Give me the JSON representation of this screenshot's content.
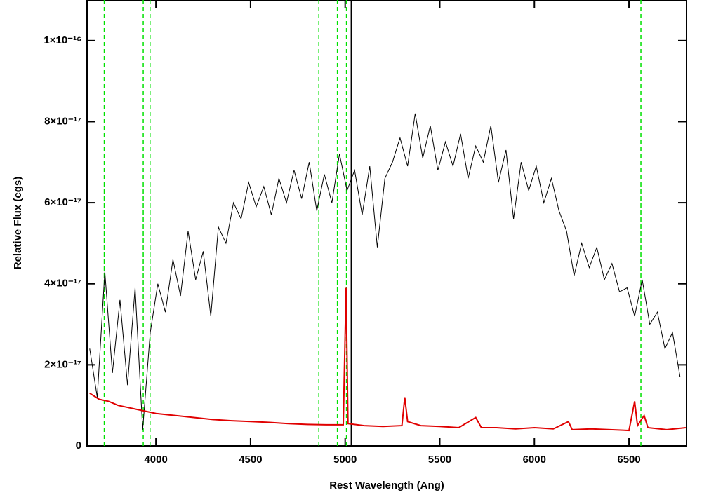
{
  "chart_data": {
    "type": "line",
    "xlabel": "Rest Wavelength (Ang)",
    "ylabel": "Relative Flux (cgs)",
    "xlim": [
      3636,
      6804
    ],
    "ylim": [
      0,
      1.1e-16
    ],
    "xticks": [
      4000,
      4500,
      5000,
      5500,
      6000,
      6500
    ],
    "yticks": [
      0,
      {
        "value": 2e-17,
        "label": "2×10⁻¹⁷"
      },
      {
        "value": 4e-17,
        "label": "4×10⁻¹⁷"
      },
      {
        "value": 6e-17,
        "label": "6×10⁻¹⁷"
      },
      {
        "value": 8e-17,
        "label": "8×10⁻¹⁷"
      },
      {
        "value": 1e-16,
        "label": "1×10⁻¹⁶"
      }
    ],
    "vlines": [
      {
        "value": 3727,
        "color": "#00e000",
        "dashed": true
      },
      {
        "value": 3933,
        "color": "#00e000",
        "dashed": true
      },
      {
        "value": 3969,
        "color": "#00e000",
        "dashed": true
      },
      {
        "value": 4861,
        "color": "#00e000",
        "dashed": true
      },
      {
        "value": 4959,
        "color": "#00e000",
        "dashed": true
      },
      {
        "value": 5007,
        "color": "#00e000",
        "dashed": true
      },
      {
        "value": 6563,
        "color": "#00e000",
        "dashed": true
      },
      {
        "value": 5032,
        "color": "#000000",
        "dashed": false
      }
    ],
    "series": [
      {
        "color": "#000000",
        "x": [
          3650,
          3690,
          3730,
          3770,
          3810,
          3850,
          3890,
          3930,
          3970,
          4010,
          4050,
          4090,
          4130,
          4170,
          4210,
          4250,
          4290,
          4330,
          4370,
          4410,
          4450,
          4490,
          4530,
          4570,
          4610,
          4650,
          4690,
          4730,
          4770,
          4810,
          4850,
          4890,
          4930,
          4970,
          5010,
          5050,
          5090,
          5130,
          5170,
          5210,
          5250,
          5290,
          5330,
          5370,
          5410,
          5450,
          5490,
          5530,
          5570,
          5610,
          5650,
          5690,
          5730,
          5770,
          5810,
          5850,
          5890,
          5930,
          5970,
          6010,
          6050,
          6090,
          6130,
          6170,
          6210,
          6250,
          6290,
          6330,
          6370,
          6410,
          6450,
          6490,
          6530,
          6570,
          6610,
          6650,
          6690,
          6730,
          6770
        ],
        "values": [
          2.4e-17,
          1.2e-17,
          4.3e-17,
          1.8e-17,
          3.6e-17,
          1.5e-17,
          3.9e-17,
          4e-18,
          2.8e-17,
          4e-17,
          3.3e-17,
          4.6e-17,
          3.7e-17,
          5.3e-17,
          4.1e-17,
          4.8e-17,
          3.2e-17,
          5.4e-17,
          5e-17,
          6e-17,
          5.6e-17,
          6.5e-17,
          5.9e-17,
          6.4e-17,
          5.7e-17,
          6.6e-17,
          6e-17,
          6.8e-17,
          6.1e-17,
          7e-17,
          5.8e-17,
          6.7e-17,
          6e-17,
          7.2e-17,
          6.3e-17,
          6.8e-17,
          5.7e-17,
          6.9e-17,
          4.9e-17,
          6.6e-17,
          7e-17,
          7.6e-17,
          6.9e-17,
          8.2e-17,
          7.1e-17,
          7.9e-17,
          6.8e-17,
          7.5e-17,
          6.9e-17,
          7.7e-17,
          6.6e-17,
          7.4e-17,
          7e-17,
          7.9e-17,
          6.5e-17,
          7.3e-17,
          5.6e-17,
          7e-17,
          6.3e-17,
          6.9e-17,
          6e-17,
          6.6e-17,
          5.8e-17,
          5.3e-17,
          4.2e-17,
          5e-17,
          4.4e-17,
          4.9e-17,
          4.1e-17,
          4.5e-17,
          3.8e-17,
          3.9e-17,
          3.2e-17,
          4.1e-17,
          3e-17,
          3.3e-17,
          2.4e-17,
          2.8e-17,
          1.7e-17
        ]
      },
      {
        "color": "#e00000",
        "x": [
          3650,
          3700,
          3750,
          3800,
          3850,
          3900,
          3950,
          4000,
          4100,
          4200,
          4300,
          4400,
          4500,
          4600,
          4700,
          4800,
          4900,
          4990,
          5005,
          5015,
          5100,
          5200,
          5300,
          5315,
          5330,
          5400,
          5500,
          5600,
          5690,
          5720,
          5800,
          5900,
          6000,
          6100,
          6180,
          6200,
          6300,
          6400,
          6500,
          6530,
          6545,
          6580,
          6600,
          6700,
          6800
        ],
        "values": [
          1.3e-17,
          1.15e-17,
          1.1e-17,
          1e-17,
          9.5e-18,
          9e-18,
          8.5e-18,
          8e-18,
          7.5e-18,
          7e-18,
          6.5e-18,
          6.2e-18,
          6e-18,
          5.8e-18,
          5.5e-18,
          5.3e-18,
          5.2e-18,
          5.2e-18,
          3.9e-17,
          5.5e-18,
          5e-18,
          4.8e-18,
          5e-18,
          1.2e-17,
          6e-18,
          5e-18,
          4.8e-18,
          4.5e-18,
          7e-18,
          4.5e-18,
          4.5e-18,
          4.2e-18,
          4.5e-18,
          4.2e-18,
          6e-18,
          4e-18,
          4.2e-18,
          4e-18,
          3.8e-18,
          1.1e-17,
          5e-18,
          7.5e-18,
          4.5e-18,
          4e-18,
          4.5e-18
        ]
      }
    ]
  }
}
